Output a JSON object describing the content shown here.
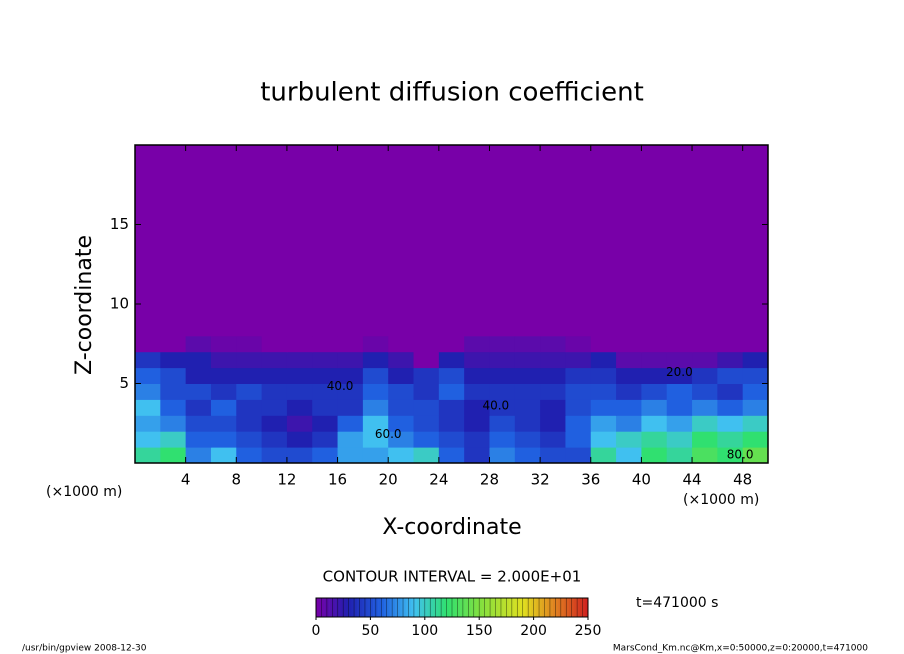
{
  "chart_data": {
    "type": "contour",
    "title": "turbulent diffusion coefficient",
    "xlabel": "X-coordinate",
    "ylabel": "Z-coordinate",
    "x_unit_label": "(×1000 m)",
    "y_unit_label": "(×1000 m)",
    "xlim": [
      0,
      50
    ],
    "ylim": [
      0,
      20
    ],
    "xticks": [
      4,
      8,
      12,
      16,
      20,
      24,
      28,
      32,
      36,
      40,
      44,
      48
    ],
    "yticks": [
      5,
      10,
      15
    ],
    "xbins": [
      0,
      2,
      4,
      6,
      8,
      10,
      12,
      14,
      16,
      18,
      20,
      22,
      24,
      26,
      28,
      30,
      32,
      34,
      36,
      38,
      40,
      42,
      44,
      46,
      48,
      50
    ],
    "ybins": [
      0,
      1,
      2,
      3,
      4,
      5,
      6,
      7,
      8,
      20
    ],
    "z": [
      [
        110,
        120,
        70,
        90,
        60,
        50,
        50,
        60,
        80,
        80,
        90,
        100,
        60,
        40,
        70,
        60,
        50,
        50,
        110,
        90,
        120,
        110,
        130,
        120,
        140
      ],
      [
        90,
        100,
        60,
        60,
        50,
        40,
        30,
        40,
        80,
        90,
        70,
        60,
        50,
        40,
        60,
        50,
        40,
        60,
        90,
        100,
        110,
        100,
        120,
        110,
        120
      ],
      [
        80,
        70,
        50,
        50,
        40,
        30,
        20,
        30,
        60,
        90,
        60,
        50,
        40,
        30,
        50,
        40,
        30,
        60,
        80,
        70,
        90,
        80,
        100,
        90,
        100
      ],
      [
        90,
        60,
        40,
        60,
        40,
        40,
        30,
        40,
        40,
        70,
        50,
        50,
        40,
        30,
        40,
        40,
        30,
        50,
        60,
        60,
        70,
        60,
        70,
        60,
        70
      ],
      [
        70,
        50,
        50,
        40,
        50,
        40,
        40,
        40,
        40,
        60,
        50,
        40,
        60,
        40,
        40,
        40,
        40,
        50,
        50,
        40,
        50,
        60,
        50,
        40,
        60
      ],
      [
        60,
        50,
        30,
        30,
        30,
        30,
        30,
        30,
        30,
        50,
        30,
        40,
        50,
        30,
        30,
        30,
        30,
        40,
        40,
        30,
        30,
        30,
        40,
        50,
        50
      ],
      [
        40,
        30,
        30,
        20,
        20,
        20,
        20,
        20,
        20,
        30,
        20,
        0,
        30,
        20,
        20,
        20,
        20,
        20,
        30,
        10,
        10,
        10,
        10,
        20,
        30
      ],
      [
        0,
        0,
        10,
        5,
        5,
        0,
        0,
        0,
        0,
        5,
        0,
        0,
        0,
        10,
        10,
        10,
        10,
        5,
        0,
        0,
        0,
        0,
        0,
        0,
        0
      ],
      [
        0,
        0,
        0,
        0,
        0,
        0,
        0,
        0,
        0,
        0,
        0,
        0,
        0,
        0,
        0,
        0,
        0,
        0,
        0,
        0,
        0,
        0,
        0,
        0,
        0
      ]
    ],
    "contour_labels": [
      {
        "text": "40.0",
        "x": 16.2,
        "y": 4.8
      },
      {
        "text": "60.0",
        "x": 20,
        "y": 1.8
      },
      {
        "text": "40.0",
        "x": 28.5,
        "y": 3.6
      },
      {
        "text": "20.0",
        "x": 43,
        "y": 5.7
      },
      {
        "text": "80.0",
        "x": 47.8,
        "y": 0.5
      }
    ],
    "colorscale": [
      {
        "value": 0,
        "color": "#7800a8"
      },
      {
        "value": 30,
        "color": "#2020b0"
      },
      {
        "value": 60,
        "color": "#2060e0"
      },
      {
        "value": 90,
        "color": "#40c0f0"
      },
      {
        "value": 120,
        "color": "#30e070"
      },
      {
        "value": 150,
        "color": "#80e040"
      },
      {
        "value": 190,
        "color": "#e0e020"
      },
      {
        "value": 220,
        "color": "#e08020"
      },
      {
        "value": 250,
        "color": "#d02020"
      }
    ],
    "clim": [
      0,
      250
    ],
    "cticks": [
      0,
      50,
      100,
      150,
      200,
      250
    ],
    "contour_interval": "CONTOUR INTERVAL = 2.000E+01",
    "time_label": "t=471000 s",
    "footer_left": "/usr/bin/gpview   2008-12-30",
    "footer_right": "MarsCond_Km.nc@Km,x=0:50000,z=0:20000,t=471000"
  }
}
